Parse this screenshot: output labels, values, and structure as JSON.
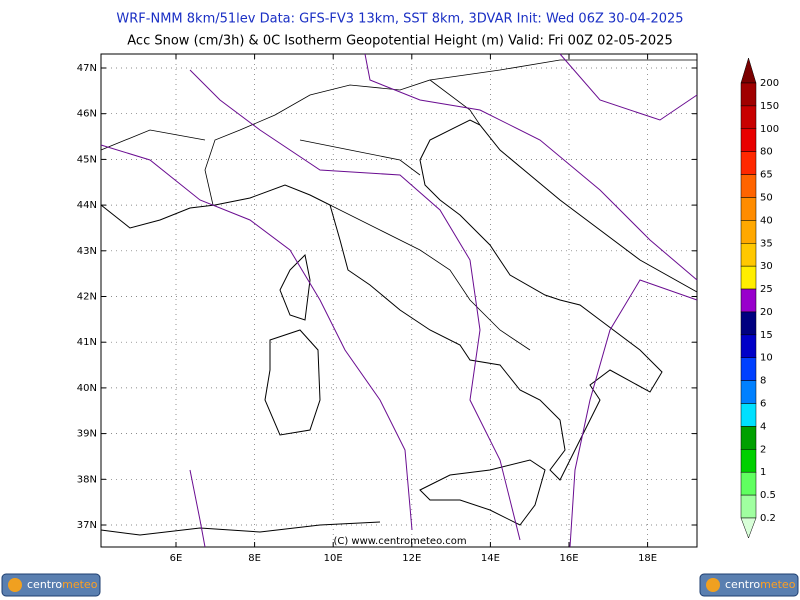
{
  "header": {
    "line1": "WRF-NMM 8km/51lev  Data: GFS-FV3 13km, SST 8km, 3DVAR  Init: Wed 06Z 30-04-2025",
    "line2": "Acc Snow (cm/3h) & 0C Isotherm Geopotential Height (m)  Valid: Fri 00Z 02-05-2025"
  },
  "map": {
    "lat_labels": [
      "47N",
      "46N",
      "45N",
      "44N",
      "43N",
      "42N",
      "41N",
      "40N",
      "39N",
      "38N",
      "37N"
    ],
    "lon_labels": [
      "6E",
      "8E",
      "10E",
      "12E",
      "14E",
      "16E",
      "18E"
    ],
    "credit": "(C) www.centrometeo.com"
  },
  "legend": {
    "levels": [
      200,
      150,
      100,
      80,
      65,
      50,
      40,
      35,
      30,
      25,
      20,
      15,
      10,
      8,
      6,
      4,
      2,
      1,
      0.5,
      0.2
    ],
    "colors": [
      "#7a0000",
      "#a00000",
      "#c80000",
      "#e80000",
      "#ff2800",
      "#ff6400",
      "#ff8c00",
      "#ffa800",
      "#ffc800",
      "#ffee00",
      "#9900cc",
      "#000080",
      "#0000c8",
      "#0040ff",
      "#0080ff",
      "#00e0ff",
      "#00a000",
      "#00d000",
      "#60ff60",
      "#a0ffa0",
      "#d8ffd8"
    ]
  },
  "logo": {
    "part1": "centro",
    "part2": "meteo"
  }
}
